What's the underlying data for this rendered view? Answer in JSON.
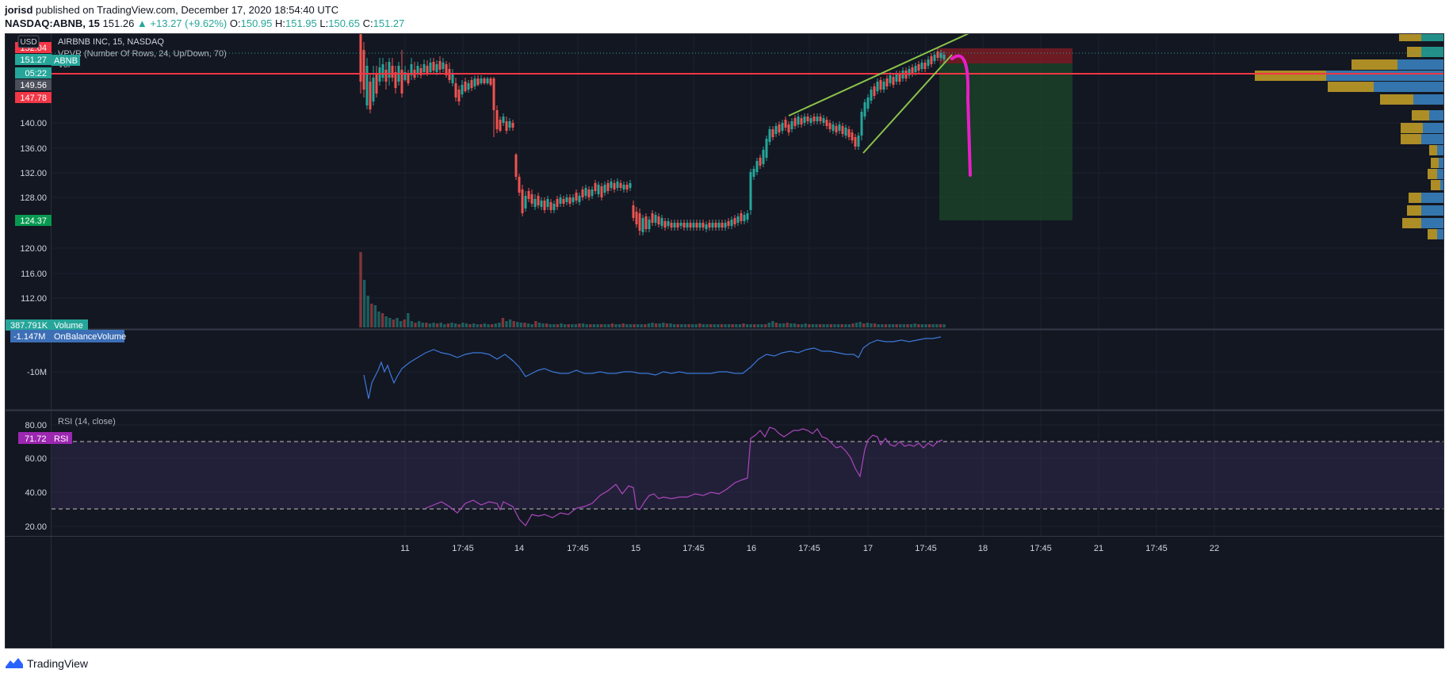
{
  "header": {
    "author": "jorisd",
    "published_text": "published on TradingView.com, December 17, 2020 18:54:40 UTC",
    "ticker": "NASDAQ:ABNB, 15",
    "price": "151.26",
    "change": "▲ +13.27 (+9.62%)",
    "o_label": "O:",
    "o_value": "150.95",
    "h_label": "H:",
    "h_value": "151.95",
    "l_label": "L:",
    "l_value": "150.65",
    "c_label": "C:",
    "c_value": "151.27"
  },
  "chart": {
    "currency": "USD",
    "legend_symbol": "AIRBNB INC, 15, NASDAQ",
    "legend_vpvr": "VPVR (Number Of Rows, 24, Up/Down, 70)",
    "legend_vol": "Vol",
    "price_ticks": [
      "140.00",
      "136.00",
      "132.00",
      "128.00",
      "124.37",
      "120.00",
      "116.00",
      "112.00"
    ],
    "price_tick_values": [
      140,
      136,
      132,
      128,
      124.37,
      120,
      116,
      112
    ],
    "price_labels": [
      {
        "text": "152.04",
        "color": "#f23645"
      },
      {
        "text": "151.27",
        "color": "#26a69a"
      },
      {
        "text": "05:22",
        "color": "#26a69a"
      },
      {
        "text": "149.56",
        "color": "#4a4e59"
      },
      {
        "text": "147.78",
        "color": "#f23645"
      },
      {
        "text": "124.37",
        "color": "#089950"
      }
    ],
    "price_tag_abnb": "ABNB",
    "volume_value": "387.791K",
    "volume_label": "Volume",
    "obv_value": "-1.147M",
    "obv_label": "OnBalanceVolume",
    "obv_ghost": "OBV",
    "obv_tick": "-10M",
    "rsi_legend": "RSI (14, close)",
    "rsi_ticks": [
      "80.00",
      "60.00",
      "40.00",
      "20.00"
    ],
    "rsi_value": "71.72",
    "rsi_label": "RSI",
    "x_ticks": [
      "11",
      "17:45",
      "14",
      "17:45",
      "15",
      "17:45",
      "16",
      "17:45",
      "17",
      "17:45",
      "18",
      "17:45",
      "21",
      "17:45",
      "22"
    ],
    "colors": {
      "bg": "#131722",
      "up": "#26a69a",
      "down": "#ef5350",
      "obv": "#3c78d8",
      "rsi": "#9c27b0",
      "wedge": "#8bc34a",
      "arrow": "#e91ec8",
      "hline": "#f23645"
    }
  },
  "footer": {
    "brand": "TradingView"
  }
}
